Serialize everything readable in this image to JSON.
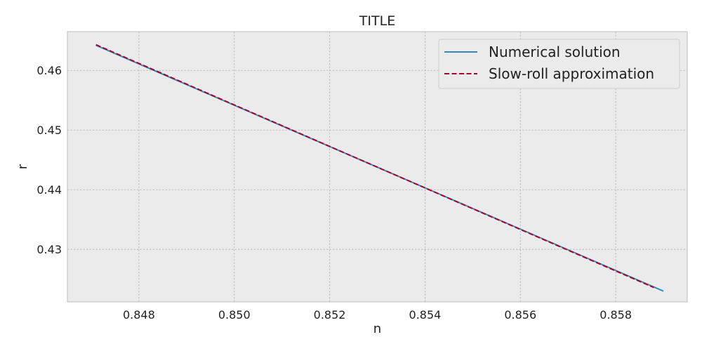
{
  "chart_data": {
    "type": "line",
    "title": "TITLE",
    "xlabel": "n",
    "ylabel": "r",
    "xlim": [
      0.8465,
      0.8595
    ],
    "ylim": [
      0.4212,
      0.4665
    ],
    "xticks": [
      0.848,
      0.85,
      0.852,
      0.854,
      0.856,
      0.858
    ],
    "xtick_labels": [
      "0.848",
      "0.850",
      "0.852",
      "0.854",
      "0.856",
      "0.858"
    ],
    "yticks": [
      0.43,
      0.44,
      0.45,
      0.46
    ],
    "ytick_labels": [
      "0.43",
      "0.44",
      "0.45",
      "0.46"
    ],
    "grid": true,
    "legend_position": "top-right",
    "series": [
      {
        "name": "Numerical solution",
        "style": "solid",
        "color": "#348ABD",
        "x": [
          0.8471,
          0.859
        ],
        "y": [
          0.4642,
          0.423
        ]
      },
      {
        "name": "Slow-roll approximation",
        "style": "dashed",
        "color": "#A60628",
        "x": [
          0.8471,
          0.8588
        ],
        "y": [
          0.4643,
          0.4236
        ]
      }
    ]
  },
  "colors": {
    "plot_background": "#EBEBEB",
    "grid": "#B2B2B2",
    "axes_edge": "#BCBCBC"
  }
}
